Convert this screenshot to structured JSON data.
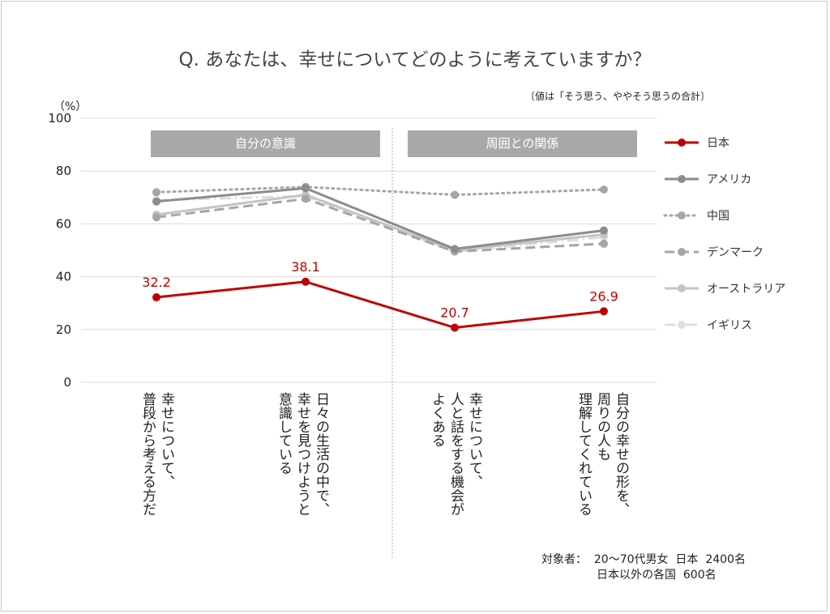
{
  "title": "Q. あなたは、幸せについてどのように考えていますか？",
  "note": "〔値は「そう思う、ややそう思うの合計〕",
  "unit": "（%）",
  "sections": [
    "自分の意識",
    "周囲との関係"
  ],
  "source_line1": "対象者：  20～70代男女  日本  2400名",
  "source_line2": "日本以外の各国  600名",
  "chart_data": {
    "type": "line",
    "ylabel": "",
    "ylim": [
      0,
      100
    ],
    "yticks": [
      "100",
      "80",
      "60",
      "40",
      "20",
      "0"
    ],
    "categories": [
      "幸せについて、\n普段から考える方だ",
      "日々の生活の中で、\n幸せを見つけようと\n意識している",
      "幸せについて、\n人と話をする機会が\nよくある",
      "自分の幸せの形を、\n周りの人も\n理解してくれている"
    ],
    "series": [
      {
        "name": "日本",
        "values": [
          32.2,
          38.1,
          20.7,
          26.9
        ],
        "color": "#c00000",
        "style": "solid-bold",
        "labels": [
          "32.2",
          "38.1",
          "20.7",
          "26.9"
        ]
      },
      {
        "name": "アメリカ",
        "values": [
          68.5,
          73.5,
          50.5,
          57.5
        ],
        "color": "#8c8c8c",
        "style": "solid"
      },
      {
        "name": "中国",
        "values": [
          72,
          74,
          71,
          73
        ],
        "color": "#a6a6a6",
        "style": "dotted"
      },
      {
        "name": "デンマーク",
        "values": [
          62.5,
          69.5,
          49.5,
          52.5
        ],
        "color": "#a6a6a6",
        "style": "dashed"
      },
      {
        "name": "オーストラリア",
        "values": [
          63.5,
          71,
          50,
          56
        ],
        "color": "#c4c4c4",
        "style": "solid"
      },
      {
        "name": "イギリス",
        "values": [
          69,
          70.5,
          49.5,
          55
        ],
        "color": "#dedede",
        "style": "dashdot"
      }
    ],
    "grid": true,
    "legend": "right"
  }
}
